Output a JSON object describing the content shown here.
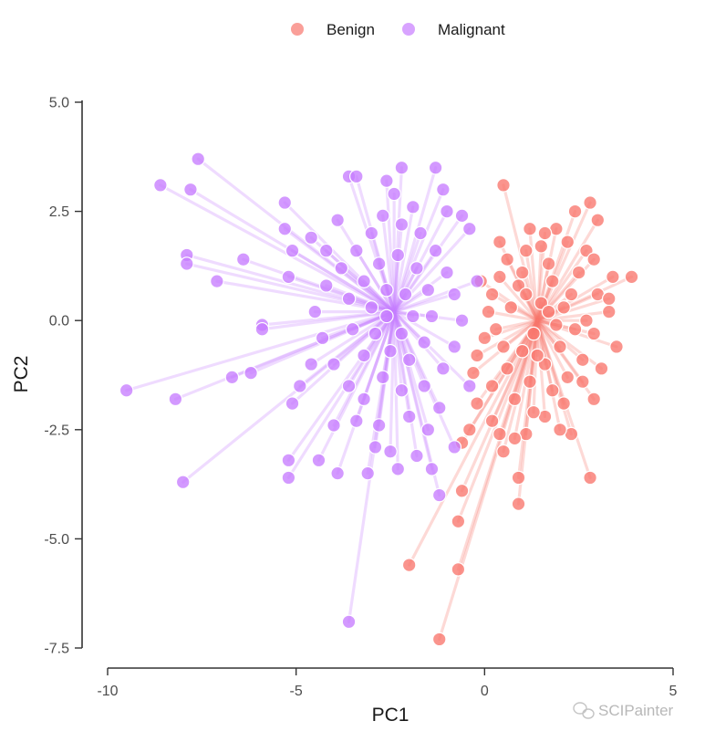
{
  "chart_data": {
    "type": "scatter",
    "subtype": "spider plot (points connected to group centroid)",
    "title": "",
    "xlabel": "PC1",
    "ylabel": "PC2",
    "xlim": [
      -10,
      5
    ],
    "ylim": [
      -7.5,
      5.0
    ],
    "xticks": [
      -10,
      -5,
      0,
      5
    ],
    "xtick_labels": [
      "-10",
      "-5",
      "0",
      "5"
    ],
    "yticks": [
      5.0,
      2.5,
      0.0,
      -2.5,
      -5.0,
      -7.5
    ],
    "ytick_labels": [
      "5.0",
      "2.5",
      "0.0",
      "-2.5",
      "-5.0",
      "-7.5"
    ],
    "grid": false,
    "legend_position": "top-center",
    "series": [
      {
        "name": "Benign",
        "color": "#F8766D",
        "centroid": [
          1.4,
          0.0
        ],
        "points": [
          [
            0.5,
            3.1
          ],
          [
            2.8,
            2.7
          ],
          [
            2.4,
            2.5
          ],
          [
            3.0,
            2.3
          ],
          [
            1.9,
            2.1
          ],
          [
            3.9,
            1.0
          ],
          [
            3.4,
            1.0
          ],
          [
            3.3,
            0.2
          ],
          [
            3.5,
            -0.6
          ],
          [
            3.1,
            -1.1
          ],
          [
            2.9,
            -1.8
          ],
          [
            2.8,
            -3.6
          ],
          [
            2.3,
            -2.6
          ],
          [
            2.0,
            -2.5
          ],
          [
            1.6,
            -2.2
          ],
          [
            1.1,
            -2.6
          ],
          [
            0.8,
            -2.7
          ],
          [
            0.4,
            -2.6
          ],
          [
            0.2,
            -2.3
          ],
          [
            -0.4,
            -2.5
          ],
          [
            -0.6,
            -2.8
          ],
          [
            -0.6,
            -3.9
          ],
          [
            -0.7,
            -4.6
          ],
          [
            -0.7,
            -5.7
          ],
          [
            -1.2,
            -7.3
          ],
          [
            -2.0,
            -5.6
          ],
          [
            0.9,
            -3.6
          ],
          [
            0.9,
            -4.2
          ],
          [
            0.5,
            -3.0
          ],
          [
            1.3,
            -2.1
          ],
          [
            1.8,
            -1.6
          ],
          [
            2.2,
            -1.3
          ],
          [
            2.6,
            -0.9
          ],
          [
            2.9,
            -0.3
          ],
          [
            3.0,
            0.6
          ],
          [
            2.7,
            1.6
          ],
          [
            2.2,
            1.8
          ],
          [
            1.6,
            2.0
          ],
          [
            1.2,
            2.1
          ],
          [
            1.1,
            1.6
          ],
          [
            0.6,
            1.4
          ],
          [
            0.4,
            1.0
          ],
          [
            0.2,
            0.6
          ],
          [
            0.1,
            0.2
          ],
          [
            0.0,
            -0.4
          ],
          [
            -0.2,
            -0.8
          ],
          [
            -0.3,
            -1.2
          ],
          [
            -0.2,
            -1.9
          ],
          [
            0.2,
            -1.5
          ],
          [
            0.6,
            -1.1
          ],
          [
            1.0,
            -0.7
          ],
          [
            1.3,
            -0.3
          ],
          [
            1.5,
            0.4
          ],
          [
            1.8,
            0.9
          ],
          [
            2.1,
            0.3
          ],
          [
            2.4,
            -0.2
          ],
          [
            2.0,
            -0.6
          ],
          [
            1.6,
            -1.0
          ],
          [
            1.2,
            -1.4
          ],
          [
            0.9,
            0.8
          ],
          [
            1.7,
            1.3
          ],
          [
            2.5,
            1.1
          ],
          [
            2.7,
            0.0
          ],
          [
            0.3,
            -0.2
          ],
          [
            0.7,
            0.3
          ],
          [
            1.1,
            0.6
          ],
          [
            1.9,
            -0.1
          ],
          [
            2.3,
            0.6
          ],
          [
            1.4,
            -0.8
          ],
          [
            0.8,
            -1.8
          ],
          [
            1.5,
            1.7
          ],
          [
            2.9,
            1.4
          ],
          [
            0.4,
            1.8
          ],
          [
            -0.1,
            0.9
          ],
          [
            2.6,
            -1.4
          ],
          [
            3.3,
            0.5
          ],
          [
            2.1,
            -1.9
          ],
          [
            1.0,
            1.1
          ],
          [
            1.7,
            0.2
          ],
          [
            0.5,
            -0.6
          ]
        ]
      },
      {
        "name": "Malignant",
        "color": "#C77CFF",
        "centroid": [
          -2.4,
          0.2
        ],
        "points": [
          [
            -9.5,
            -1.6
          ],
          [
            -8.2,
            -1.8
          ],
          [
            -8.0,
            -3.7
          ],
          [
            -8.6,
            3.1
          ],
          [
            -7.8,
            3.0
          ],
          [
            -7.6,
            3.7
          ],
          [
            -7.9,
            1.5
          ],
          [
            -7.9,
            1.3
          ],
          [
            -7.1,
            0.9
          ],
          [
            -6.4,
            1.4
          ],
          [
            -6.2,
            -1.2
          ],
          [
            -6.7,
            -1.3
          ],
          [
            -5.9,
            -0.1
          ],
          [
            -5.9,
            -0.2
          ],
          [
            -5.2,
            1.0
          ],
          [
            -5.1,
            1.6
          ],
          [
            -5.3,
            2.1
          ],
          [
            -5.3,
            2.7
          ],
          [
            -4.6,
            1.9
          ],
          [
            -4.2,
            1.6
          ],
          [
            -4.6,
            -1.0
          ],
          [
            -4.9,
            -1.5
          ],
          [
            -5.1,
            -1.9
          ],
          [
            -5.2,
            -3.2
          ],
          [
            -5.2,
            -3.6
          ],
          [
            -4.4,
            -3.2
          ],
          [
            -3.9,
            -3.5
          ],
          [
            -3.6,
            -6.9
          ],
          [
            -3.6,
            3.3
          ],
          [
            -3.4,
            3.3
          ],
          [
            -2.2,
            3.5
          ],
          [
            -1.3,
            3.5
          ],
          [
            -2.6,
            3.2
          ],
          [
            -2.4,
            2.9
          ],
          [
            -1.9,
            2.6
          ],
          [
            -1.0,
            2.5
          ],
          [
            -0.6,
            2.4
          ],
          [
            -3.1,
            -3.5
          ],
          [
            -2.3,
            -3.4
          ],
          [
            -2.5,
            -3.0
          ],
          [
            -1.4,
            -3.4
          ],
          [
            -0.8,
            -2.9
          ],
          [
            -1.2,
            -4.0
          ],
          [
            -1.5,
            -2.5
          ],
          [
            -2.0,
            -2.2
          ],
          [
            -2.8,
            -2.4
          ],
          [
            -3.2,
            -1.8
          ],
          [
            -3.6,
            -1.5
          ],
          [
            -4.0,
            -1.0
          ],
          [
            -4.3,
            -0.4
          ],
          [
            -4.5,
            0.2
          ],
          [
            -4.2,
            0.8
          ],
          [
            -3.8,
            1.2
          ],
          [
            -3.4,
            1.6
          ],
          [
            -3.0,
            2.0
          ],
          [
            -2.7,
            2.4
          ],
          [
            -2.2,
            2.2
          ],
          [
            -1.7,
            2.0
          ],
          [
            -1.3,
            1.6
          ],
          [
            -1.0,
            1.1
          ],
          [
            -0.8,
            0.6
          ],
          [
            -0.6,
            0.0
          ],
          [
            -0.8,
            -0.6
          ],
          [
            -1.1,
            -1.1
          ],
          [
            -1.6,
            -1.5
          ],
          [
            -2.2,
            -1.6
          ],
          [
            -2.7,
            -1.3
          ],
          [
            -3.2,
            -0.8
          ],
          [
            -3.5,
            -0.2
          ],
          [
            -3.6,
            0.5
          ],
          [
            -3.2,
            0.9
          ],
          [
            -2.8,
            1.3
          ],
          [
            -2.3,
            1.5
          ],
          [
            -1.8,
            1.2
          ],
          [
            -1.5,
            0.7
          ],
          [
            -1.4,
            0.1
          ],
          [
            -1.6,
            -0.5
          ],
          [
            -2.0,
            -0.9
          ],
          [
            -2.5,
            -0.7
          ],
          [
            -2.9,
            -0.3
          ],
          [
            -3.0,
            0.3
          ],
          [
            -2.6,
            0.7
          ],
          [
            -2.1,
            0.6
          ],
          [
            -1.9,
            0.1
          ],
          [
            -2.2,
            -0.3
          ],
          [
            -2.6,
            0.1
          ],
          [
            -3.4,
            -2.3
          ],
          [
            -1.2,
            -2.0
          ],
          [
            -0.4,
            -1.5
          ],
          [
            -0.2,
            0.9
          ],
          [
            -0.4,
            2.1
          ],
          [
            -1.1,
            3.0
          ],
          [
            -3.9,
            2.3
          ],
          [
            -4.0,
            -2.4
          ],
          [
            -2.9,
            -2.9
          ],
          [
            -1.8,
            -3.1
          ]
        ]
      }
    ],
    "watermark": "SCIPainter"
  }
}
